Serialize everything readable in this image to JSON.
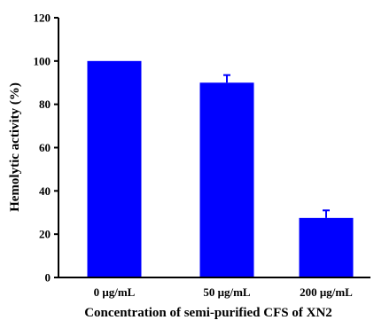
{
  "chart_data": {
    "type": "bar",
    "title": "",
    "xlabel": "Concentration of semi-purified CFS of XN2",
    "ylabel": "Hemolytic activity (%)",
    "categories": [
      "0 μg/mL",
      "50 μg/mL",
      "200 μg/mL"
    ],
    "values": [
      100,
      90,
      27.5
    ],
    "error_plus": [
      0,
      3.5,
      3.5
    ],
    "ylim": [
      0,
      120
    ],
    "yticks": [
      "0",
      "20",
      "40",
      "60",
      "80",
      "100",
      "120"
    ],
    "ytick_values": [
      0,
      20,
      40,
      60,
      80,
      100,
      120
    ],
    "grid": false,
    "bar_color": "#0000ff"
  }
}
